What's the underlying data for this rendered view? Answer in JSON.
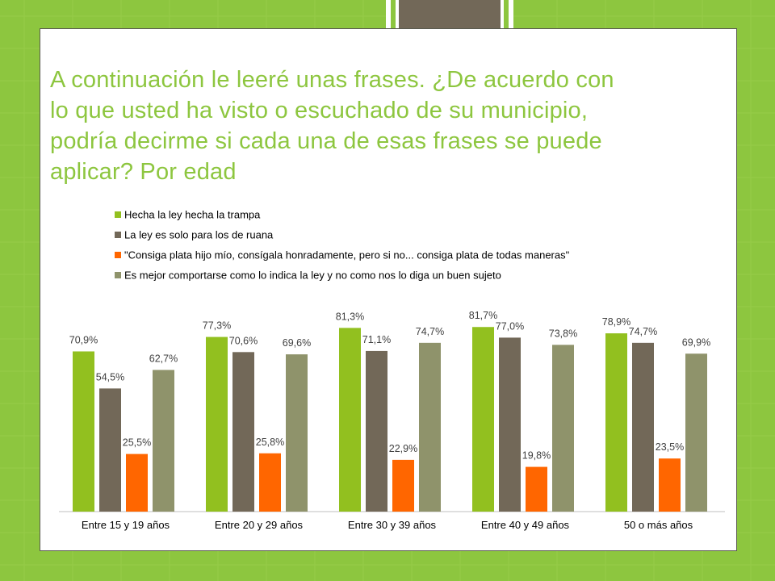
{
  "slide": {
    "title_lines": [
      "A continuación le leeré unas frases. ¿De acuerdo con",
      "lo que usted ha visto o escuchado de su municipio,",
      "podría decirme si cada una de esas frases se puede",
      "aplicar? Por edad"
    ]
  },
  "colors": {
    "background_green": "#8dc63f",
    "accent_dark": "#726858",
    "series": [
      "#92c01f",
      "#726858",
      "#ff6600",
      "#8f936b"
    ]
  },
  "chart_data": {
    "type": "bar",
    "categories": [
      "Entre 15 y 19 años",
      "Entre 20 y 29 años",
      "Entre 30 y 39 años",
      "Entre 40 y 49 años",
      "50 o más años"
    ],
    "series": [
      {
        "name": "Hecha la ley hecha la trampa",
        "color": "#92c01f",
        "values": [
          70.9,
          77.3,
          81.3,
          81.7,
          78.9
        ],
        "labels": [
          "70,9%",
          "77,3%",
          "81,3%",
          "81,7%",
          "78,9%"
        ]
      },
      {
        "name": "La ley es solo para los de ruana",
        "color": "#726858",
        "values": [
          54.5,
          70.6,
          71.1,
          77.0,
          74.7
        ],
        "labels": [
          "54,5%",
          "70,6%",
          "71,1%",
          "77,0%",
          "74,7%"
        ]
      },
      {
        "name": "\"Consiga plata hijo mío, consígala honradamente, pero si no... consiga plata de todas maneras\"",
        "color": "#ff6600",
        "values": [
          25.5,
          25.8,
          22.9,
          19.8,
          23.5
        ],
        "labels": [
          "25,5%",
          "25,8%",
          "22,9%",
          "19,8%",
          "23,5%"
        ]
      },
      {
        "name": "Es mejor comportarse como lo indica la ley y no como nos lo diga un buen sujeto",
        "color": "#8f936b",
        "values": [
          62.7,
          69.6,
          74.7,
          73.8,
          69.9
        ],
        "labels": [
          "62,7%",
          "69,6%",
          "74,7%",
          "73,8%",
          "69,9%"
        ]
      }
    ],
    "unit": "%",
    "ylim": [
      0,
      100
    ],
    "legend_position": "top",
    "grid": false
  }
}
